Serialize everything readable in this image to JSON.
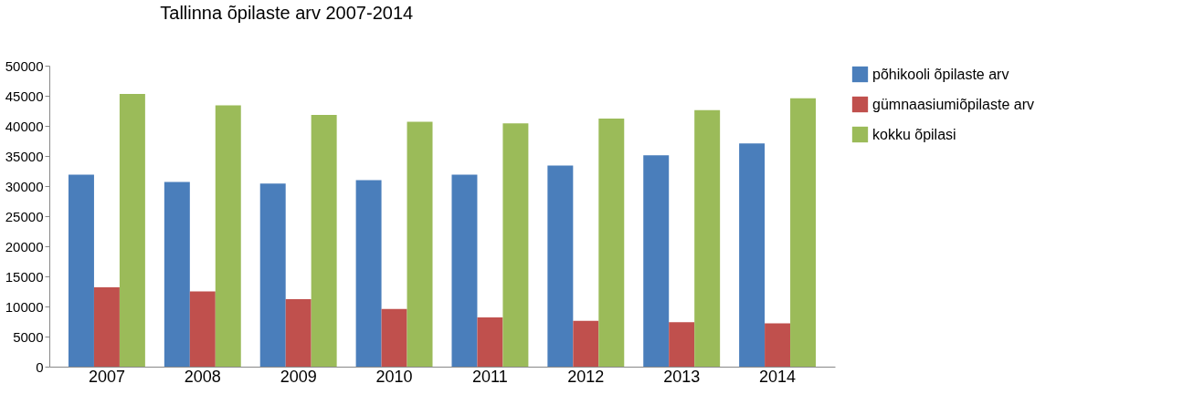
{
  "chart_data": {
    "type": "bar",
    "title": "Tallinna õpilaste arv 2007-2014",
    "categories": [
      "2007",
      "2008",
      "2009",
      "2010",
      "2011",
      "2012",
      "2013",
      "2014"
    ],
    "series": [
      {
        "name": "põhikooli õpilaste arv",
        "color": "#4a7ebb",
        "values": [
          31900,
          30700,
          30400,
          31000,
          31900,
          33400,
          35100,
          37100
        ]
      },
      {
        "name": "gümnaasiumiõpilaste arv",
        "color": "#c0504d",
        "values": [
          13200,
          12500,
          11200,
          9600,
          8200,
          7600,
          7400,
          7200
        ]
      },
      {
        "name": "kokku õpilasi",
        "color": "#9bbb59",
        "values": [
          45300,
          43400,
          41800,
          40700,
          40400,
          41200,
          42600,
          44600
        ]
      }
    ],
    "ylim": [
      0,
      50000
    ],
    "yticks": [
      0,
      5000,
      10000,
      15000,
      20000,
      25000,
      30000,
      35000,
      40000,
      45000,
      50000
    ],
    "grid": false,
    "legend": "right"
  }
}
